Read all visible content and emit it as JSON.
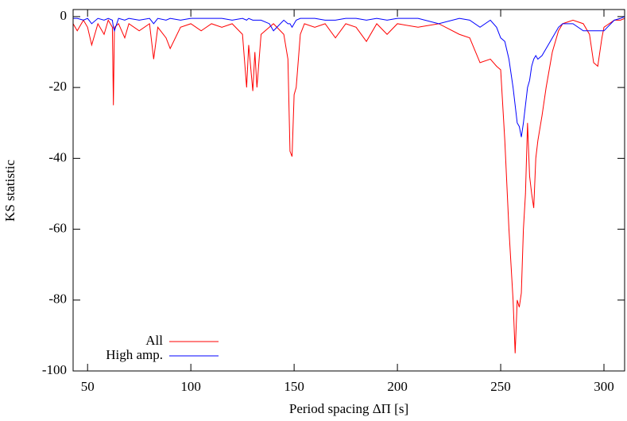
{
  "chart_data": {
    "type": "line",
    "x_label": "Period spacing ΔΠ [s]",
    "y_label": "KS statistic",
    "x": [
      43,
      45,
      48,
      50,
      52,
      55,
      58,
      60,
      62,
      62.5,
      63,
      65,
      68,
      70,
      75,
      80,
      82,
      84,
      88,
      90,
      95,
      100,
      105,
      110,
      115,
      120,
      125,
      127,
      128,
      130,
      131,
      132,
      134,
      138,
      140,
      145,
      147,
      148,
      149,
      150,
      151,
      153,
      155,
      160,
      165,
      170,
      175,
      180,
      185,
      190,
      195,
      200,
      210,
      220,
      230,
      235,
      240,
      245,
      248,
      250,
      252,
      254,
      256,
      257,
      258,
      259,
      260,
      261,
      262,
      263,
      264,
      265,
      266,
      267,
      268,
      270,
      272,
      275,
      278,
      280,
      285,
      290,
      293,
      295,
      297,
      299,
      300,
      305,
      308,
      310
    ],
    "series": [
      {
        "name": "All",
        "color": "#ff0000",
        "values": [
          -2,
          -4,
          -1,
          -3,
          -8,
          -2,
          -5,
          -1,
          -3,
          -25,
          -3,
          -2,
          -6,
          -2,
          -4,
          -2,
          -12,
          -3,
          -6,
          -9,
          -3,
          -2,
          -4,
          -2,
          -3,
          -2,
          -5,
          -20,
          -8,
          -21,
          -10,
          -20,
          -5,
          -3,
          -2,
          -5,
          -12,
          -38,
          -39.5,
          -22,
          -20,
          -5,
          -2,
          -3,
          -2,
          -6,
          -2,
          -3,
          -7,
          -2,
          -5,
          -2,
          -3,
          -2,
          -5,
          -6,
          -13,
          -12,
          -14,
          -15,
          -35,
          -60,
          -80,
          -95,
          -80,
          -82,
          -78,
          -60,
          -50,
          -30,
          -45,
          -50,
          -54,
          -40,
          -35,
          -28,
          -20,
          -10,
          -4,
          -2,
          -1,
          -2,
          -5,
          -13,
          -14,
          -6,
          -3,
          -1,
          -1,
          -0.5
        ]
      },
      {
        "name": "High amp.",
        "color": "#0000ff",
        "values": [
          -0.5,
          -0.5,
          -1,
          -0.5,
          -2,
          -0.5,
          -1,
          -0.5,
          -1,
          -3,
          -4,
          -0.5,
          -1,
          -0.5,
          -1,
          -0.5,
          -2,
          -0.5,
          -1,
          -0.5,
          -1,
          -0.5,
          -0.5,
          -0.5,
          -0.5,
          -1,
          -0.5,
          -1,
          -0.5,
          -1,
          -1,
          -1,
          -1,
          -2,
          -4,
          -1,
          -2,
          -2,
          -3,
          -2,
          -1,
          -0.5,
          -0.5,
          -0.5,
          -1,
          -1,
          -0.5,
          -0.5,
          -1,
          -0.5,
          -1,
          -0.5,
          -0.5,
          -2,
          -0.5,
          -1,
          -3,
          -1,
          -3,
          -6,
          -7,
          -12,
          -20,
          -25,
          -30,
          -31,
          -34,
          -30,
          -25,
          -20,
          -18,
          -14,
          -12,
          -11,
          -12,
          -11,
          -9,
          -6,
          -3,
          -2,
          -2,
          -4,
          -4,
          -4,
          -4,
          -4,
          -4,
          -1,
          -0.5,
          0
        ]
      }
    ],
    "xlim": [
      43,
      310
    ],
    "ylim": [
      -100,
      2
    ],
    "xticks": [
      50,
      100,
      150,
      200,
      250,
      300
    ],
    "yticks": [
      0,
      -20,
      -40,
      -60,
      -80,
      -100
    ],
    "legend": "bottom-left"
  }
}
